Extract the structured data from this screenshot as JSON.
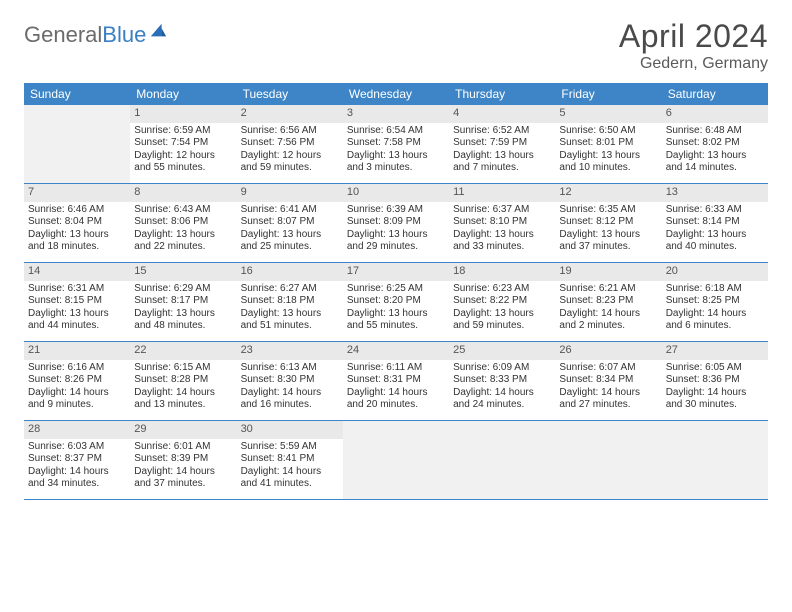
{
  "logo": {
    "textGray": "General",
    "textBlue": "Blue"
  },
  "title": "April 2024",
  "location": "Gedern, Germany",
  "colors": {
    "headerBar": "#3d85c6",
    "cellHeader": "#e9e9e9",
    "emptyCell": "#f1f1f1",
    "pageBg": "#ffffff",
    "text": "#333333",
    "titleText": "#4a4a4a",
    "logoGray": "#6b6b6b",
    "logoBlue": "#3a7fc4"
  },
  "layout": {
    "pageWidth": 792,
    "pageHeight": 612,
    "columns": 7,
    "rows": 5,
    "fontFamily": "Arial",
    "bodyFontSize": 10,
    "dayHeadFontSize": 12,
    "titleFontSize": 32,
    "locationFontSize": 16
  },
  "dayNames": [
    "Sunday",
    "Monday",
    "Tuesday",
    "Wednesday",
    "Thursday",
    "Friday",
    "Saturday"
  ],
  "weeks": [
    [
      {
        "empty": true
      },
      {
        "day": "1",
        "sunrise": "Sunrise: 6:59 AM",
        "sunset": "Sunset: 7:54 PM",
        "daylight": "Daylight: 12 hours and 55 minutes."
      },
      {
        "day": "2",
        "sunrise": "Sunrise: 6:56 AM",
        "sunset": "Sunset: 7:56 PM",
        "daylight": "Daylight: 12 hours and 59 minutes."
      },
      {
        "day": "3",
        "sunrise": "Sunrise: 6:54 AM",
        "sunset": "Sunset: 7:58 PM",
        "daylight": "Daylight: 13 hours and 3 minutes."
      },
      {
        "day": "4",
        "sunrise": "Sunrise: 6:52 AM",
        "sunset": "Sunset: 7:59 PM",
        "daylight": "Daylight: 13 hours and 7 minutes."
      },
      {
        "day": "5",
        "sunrise": "Sunrise: 6:50 AM",
        "sunset": "Sunset: 8:01 PM",
        "daylight": "Daylight: 13 hours and 10 minutes."
      },
      {
        "day": "6",
        "sunrise": "Sunrise: 6:48 AM",
        "sunset": "Sunset: 8:02 PM",
        "daylight": "Daylight: 13 hours and 14 minutes."
      }
    ],
    [
      {
        "day": "7",
        "sunrise": "Sunrise: 6:46 AM",
        "sunset": "Sunset: 8:04 PM",
        "daylight": "Daylight: 13 hours and 18 minutes."
      },
      {
        "day": "8",
        "sunrise": "Sunrise: 6:43 AM",
        "sunset": "Sunset: 8:06 PM",
        "daylight": "Daylight: 13 hours and 22 minutes."
      },
      {
        "day": "9",
        "sunrise": "Sunrise: 6:41 AM",
        "sunset": "Sunset: 8:07 PM",
        "daylight": "Daylight: 13 hours and 25 minutes."
      },
      {
        "day": "10",
        "sunrise": "Sunrise: 6:39 AM",
        "sunset": "Sunset: 8:09 PM",
        "daylight": "Daylight: 13 hours and 29 minutes."
      },
      {
        "day": "11",
        "sunrise": "Sunrise: 6:37 AM",
        "sunset": "Sunset: 8:10 PM",
        "daylight": "Daylight: 13 hours and 33 minutes."
      },
      {
        "day": "12",
        "sunrise": "Sunrise: 6:35 AM",
        "sunset": "Sunset: 8:12 PM",
        "daylight": "Daylight: 13 hours and 37 minutes."
      },
      {
        "day": "13",
        "sunrise": "Sunrise: 6:33 AM",
        "sunset": "Sunset: 8:14 PM",
        "daylight": "Daylight: 13 hours and 40 minutes."
      }
    ],
    [
      {
        "day": "14",
        "sunrise": "Sunrise: 6:31 AM",
        "sunset": "Sunset: 8:15 PM",
        "daylight": "Daylight: 13 hours and 44 minutes."
      },
      {
        "day": "15",
        "sunrise": "Sunrise: 6:29 AM",
        "sunset": "Sunset: 8:17 PM",
        "daylight": "Daylight: 13 hours and 48 minutes."
      },
      {
        "day": "16",
        "sunrise": "Sunrise: 6:27 AM",
        "sunset": "Sunset: 8:18 PM",
        "daylight": "Daylight: 13 hours and 51 minutes."
      },
      {
        "day": "17",
        "sunrise": "Sunrise: 6:25 AM",
        "sunset": "Sunset: 8:20 PM",
        "daylight": "Daylight: 13 hours and 55 minutes."
      },
      {
        "day": "18",
        "sunrise": "Sunrise: 6:23 AM",
        "sunset": "Sunset: 8:22 PM",
        "daylight": "Daylight: 13 hours and 59 minutes."
      },
      {
        "day": "19",
        "sunrise": "Sunrise: 6:21 AM",
        "sunset": "Sunset: 8:23 PM",
        "daylight": "Daylight: 14 hours and 2 minutes."
      },
      {
        "day": "20",
        "sunrise": "Sunrise: 6:18 AM",
        "sunset": "Sunset: 8:25 PM",
        "daylight": "Daylight: 14 hours and 6 minutes."
      }
    ],
    [
      {
        "day": "21",
        "sunrise": "Sunrise: 6:16 AM",
        "sunset": "Sunset: 8:26 PM",
        "daylight": "Daylight: 14 hours and 9 minutes."
      },
      {
        "day": "22",
        "sunrise": "Sunrise: 6:15 AM",
        "sunset": "Sunset: 8:28 PM",
        "daylight": "Daylight: 14 hours and 13 minutes."
      },
      {
        "day": "23",
        "sunrise": "Sunrise: 6:13 AM",
        "sunset": "Sunset: 8:30 PM",
        "daylight": "Daylight: 14 hours and 16 minutes."
      },
      {
        "day": "24",
        "sunrise": "Sunrise: 6:11 AM",
        "sunset": "Sunset: 8:31 PM",
        "daylight": "Daylight: 14 hours and 20 minutes."
      },
      {
        "day": "25",
        "sunrise": "Sunrise: 6:09 AM",
        "sunset": "Sunset: 8:33 PM",
        "daylight": "Daylight: 14 hours and 24 minutes."
      },
      {
        "day": "26",
        "sunrise": "Sunrise: 6:07 AM",
        "sunset": "Sunset: 8:34 PM",
        "daylight": "Daylight: 14 hours and 27 minutes."
      },
      {
        "day": "27",
        "sunrise": "Sunrise: 6:05 AM",
        "sunset": "Sunset: 8:36 PM",
        "daylight": "Daylight: 14 hours and 30 minutes."
      }
    ],
    [
      {
        "day": "28",
        "sunrise": "Sunrise: 6:03 AM",
        "sunset": "Sunset: 8:37 PM",
        "daylight": "Daylight: 14 hours and 34 minutes."
      },
      {
        "day": "29",
        "sunrise": "Sunrise: 6:01 AM",
        "sunset": "Sunset: 8:39 PM",
        "daylight": "Daylight: 14 hours and 37 minutes."
      },
      {
        "day": "30",
        "sunrise": "Sunrise: 5:59 AM",
        "sunset": "Sunset: 8:41 PM",
        "daylight": "Daylight: 14 hours and 41 minutes."
      },
      {
        "empty": true
      },
      {
        "empty": true
      },
      {
        "empty": true
      },
      {
        "empty": true
      }
    ]
  ]
}
